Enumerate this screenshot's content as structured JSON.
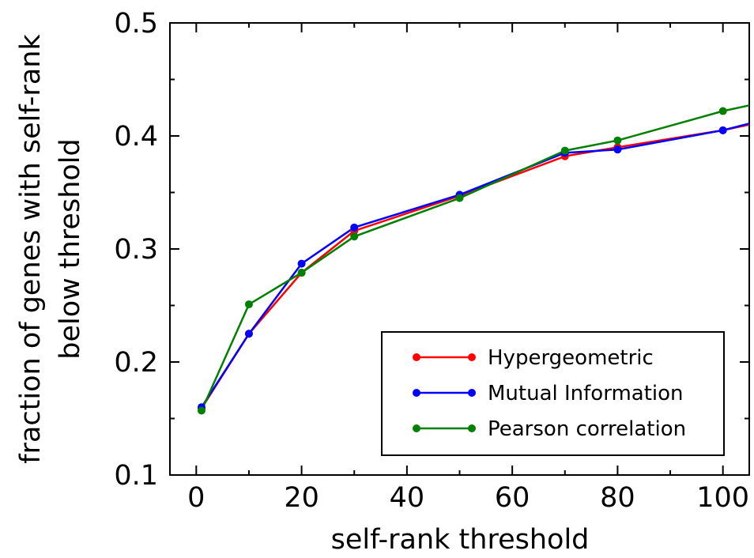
{
  "chart_data": {
    "type": "line",
    "xlabel": "self-rank threshold",
    "ylabel_lines": [
      "fraction of genes with self-rank",
      "below threshold"
    ],
    "xlim": [
      -5,
      105
    ],
    "ylim": [
      0.1,
      0.5
    ],
    "xticks": [
      0,
      20,
      40,
      60,
      80,
      100
    ],
    "yticks": [
      0.1,
      0.2,
      0.3,
      0.4,
      0.5
    ],
    "xtick_labels": [
      "0",
      "20",
      "40",
      "60",
      "80",
      "100"
    ],
    "ytick_labels": [
      "0.1",
      "0.2",
      "0.3",
      "0.4",
      "0.5"
    ],
    "grid": false,
    "legend_position": "bottom-right",
    "series": [
      {
        "name": "Hypergeometric",
        "color": "#ff0000",
        "x": [
          1,
          10,
          20,
          30,
          50,
          70,
          80,
          100,
          105
        ],
        "y": [
          0.159,
          0.225,
          0.279,
          0.316,
          0.347,
          0.382,
          0.39,
          0.405,
          0.41
        ],
        "marker_count": 8
      },
      {
        "name": "Mutual Information",
        "color": "#0000ff",
        "x": [
          1,
          10,
          20,
          30,
          50,
          70,
          80,
          100,
          105
        ],
        "y": [
          0.16,
          0.225,
          0.287,
          0.319,
          0.348,
          0.385,
          0.388,
          0.405,
          0.411
        ],
        "marker_count": 8
      },
      {
        "name": "Pearson correlation",
        "color": "#008000",
        "x": [
          1,
          10,
          20,
          30,
          50,
          70,
          80,
          100,
          105
        ],
        "y": [
          0.157,
          0.251,
          0.279,
          0.311,
          0.345,
          0.387,
          0.396,
          0.422,
          0.427
        ],
        "marker_count": 8
      }
    ]
  }
}
